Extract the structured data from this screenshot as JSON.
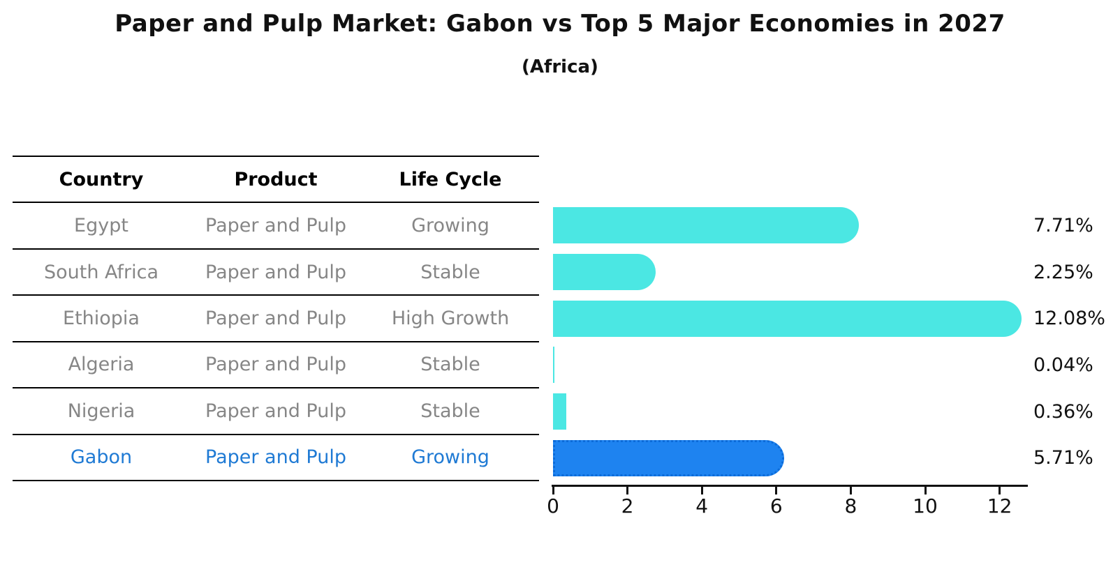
{
  "title": "Paper and Pulp Market: Gabon vs Top 5 Major Economies in 2027",
  "subtitle": "(Africa)",
  "table": {
    "headers": [
      "Country",
      "Product",
      "Life Cycle"
    ],
    "rows": [
      {
        "country": "Egypt",
        "product": "Paper and Pulp",
        "life_cycle": "Growing",
        "highlighted": false
      },
      {
        "country": "South Africa",
        "product": "Paper and Pulp",
        "life_cycle": "Stable",
        "highlighted": false
      },
      {
        "country": "Ethiopia",
        "product": "Paper and Pulp",
        "life_cycle": "High Growth",
        "highlighted": false
      },
      {
        "country": "Algeria",
        "product": "Paper and Pulp",
        "life_cycle": "Stable",
        "highlighted": false
      },
      {
        "country": "Nigeria",
        "product": "Paper and Pulp",
        "life_cycle": "Stable",
        "highlighted": false
      },
      {
        "country": "Gabon",
        "product": "Paper and Pulp",
        "life_cycle": "Growing",
        "highlighted": true
      }
    ]
  },
  "chart_data": {
    "type": "bar",
    "orientation": "horizontal",
    "categories": [
      "Egypt",
      "South Africa",
      "Ethiopia",
      "Algeria",
      "Nigeria",
      "Gabon"
    ],
    "values": [
      7.71,
      2.25,
      12.08,
      0.04,
      0.36,
      5.71
    ],
    "value_labels": [
      "7.71%",
      "2.25%",
      "12.08%",
      "0.04%",
      "0.36%",
      "5.71%"
    ],
    "highlight_index": 5,
    "title": "Paper and Pulp Market: Gabon vs Top 5 Major Economies in 2027",
    "subtitle": "(Africa)",
    "xlabel": "",
    "ylabel": "",
    "xlim": [
      0,
      12.7
    ],
    "xticks": [
      0,
      2,
      4,
      6,
      8,
      10,
      12
    ],
    "grid": false,
    "legend": false,
    "bar_color": "#4BE7E3",
    "highlight_bar_color": "#1E83F0",
    "unit": "percent"
  },
  "colors": {
    "background": "#FFFFFF",
    "bar_cyan": "#4BE7E3",
    "bar_blue": "#1E83F0",
    "highlight_text_blue": "#1F7AD4",
    "table_text_gray": "#868686",
    "axis_black": "#111111"
  }
}
